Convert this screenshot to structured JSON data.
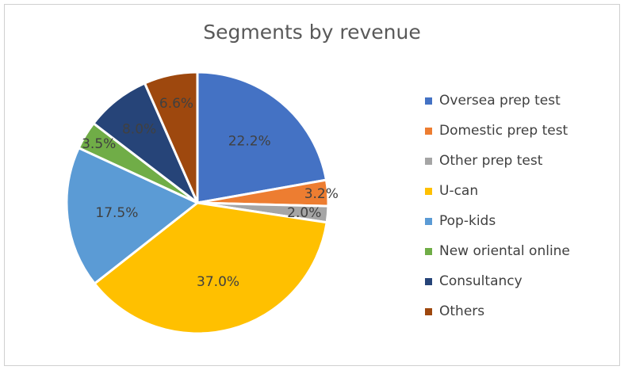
{
  "chart_data": {
    "type": "pie",
    "title": "Segments by revenue",
    "categories": [
      "Oversea prep test",
      "Domestic prep test",
      "Other prep test",
      "U-can",
      "Pop-kids",
      "New oriental online",
      "Consultancy",
      "Others"
    ],
    "values": [
      22.2,
      3.2,
      2.0,
      37.0,
      17.5,
      3.5,
      8.0,
      6.6
    ],
    "labels": [
      "22.2%",
      "3.2%",
      "2.0%",
      "37.0%",
      "17.5%",
      "3.5%",
      "8.0%",
      "6.6%"
    ],
    "colors": [
      "#4472C4",
      "#ED7D31",
      "#A5A5A5",
      "#FFC000",
      "#5B9BD5",
      "#70AD47",
      "#264478",
      "#9E480E"
    ],
    "legend_position": "right"
  }
}
